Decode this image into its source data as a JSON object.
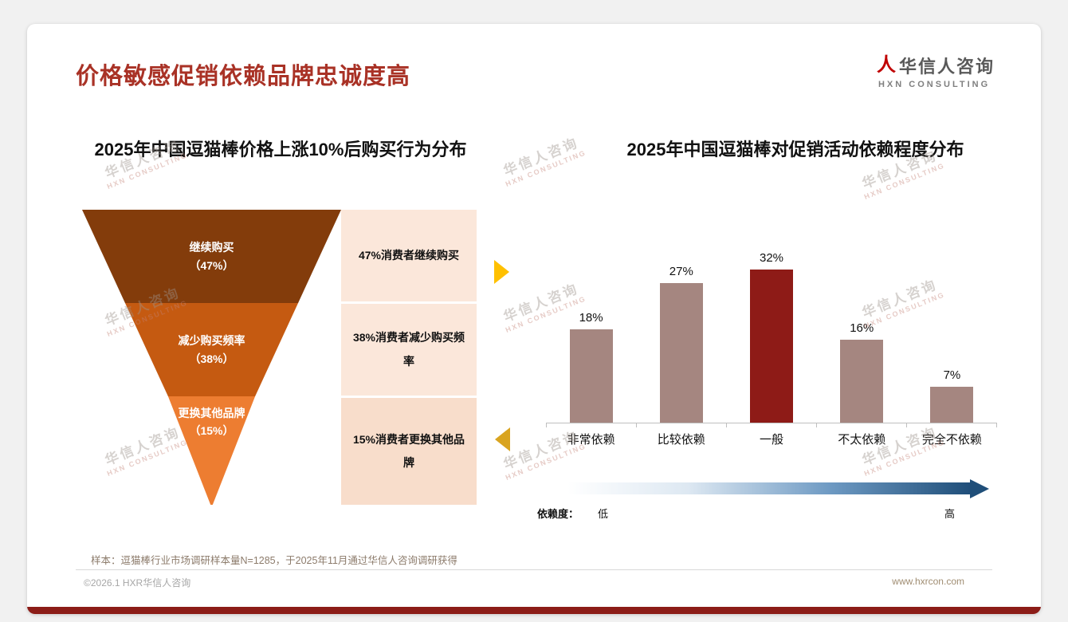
{
  "page": {
    "title": "价格敏感促销依赖品牌忠诚度高",
    "sample_note": "样本：逗猫棒行业市场调研样本量N=1285，于2025年11月通过华信人咨询调研获得",
    "footer_left": "©2026.1 HXR华信人咨询",
    "footer_right": "www.hxrcon.com"
  },
  "logo": {
    "mark": "人",
    "cn": "华信人咨询",
    "en": "HXN CONSULTING"
  },
  "watermark": {
    "line1": "华信人咨询",
    "line2": "HXN CONSULTING"
  },
  "colors": {
    "title_red": "#a93226",
    "bottom_bar_red": "#8c1d18",
    "highlight_bar_red": "#8e1b17",
    "bar_mauve": "#a58680",
    "gold_arrow_up": "#ffc000",
    "gold_arrow_down": "#d9a420",
    "gradient_blue_dark": "#1f4e79"
  },
  "chart_data": [
    {
      "type": "pie",
      "subtype": "funnel",
      "title": "2025年中国逗猫棒价格上涨10%后购买行为分布",
      "segments": [
        {
          "label": "继续购买",
          "pct_label": "（47%）",
          "value": 47,
          "desc": "47%消费者继续购买",
          "color": "#833c0b"
        },
        {
          "label": "减少购买频率",
          "pct_label": "（38%）",
          "value": 38,
          "desc": "38%消费者减少购买频率",
          "color": "#c55a11"
        },
        {
          "label": "更换其他品牌",
          "pct_label": "（15%）",
          "value": 15,
          "desc": "15%消费者更换其他品牌",
          "color": "#ed7d31"
        }
      ]
    },
    {
      "type": "bar",
      "title": "2025年中国逗猫棒对促销活动依赖程度分布",
      "categories": [
        "非常依赖",
        "比较依赖",
        "一般",
        "不太依赖",
        "完全不依赖"
      ],
      "values": [
        18,
        27,
        32,
        16,
        7
      ],
      "labels": [
        "18%",
        "27%",
        "32%",
        "16%",
        "7%"
      ],
      "bar_colors": [
        "#a58680",
        "#a58680",
        "#8e1b17",
        "#a58680",
        "#a58680"
      ],
      "ylim": [
        0,
        35
      ],
      "grid": false,
      "legend": "none",
      "axis_note": {
        "prefix": "依赖度：",
        "low": "低",
        "high": "高"
      }
    }
  ]
}
